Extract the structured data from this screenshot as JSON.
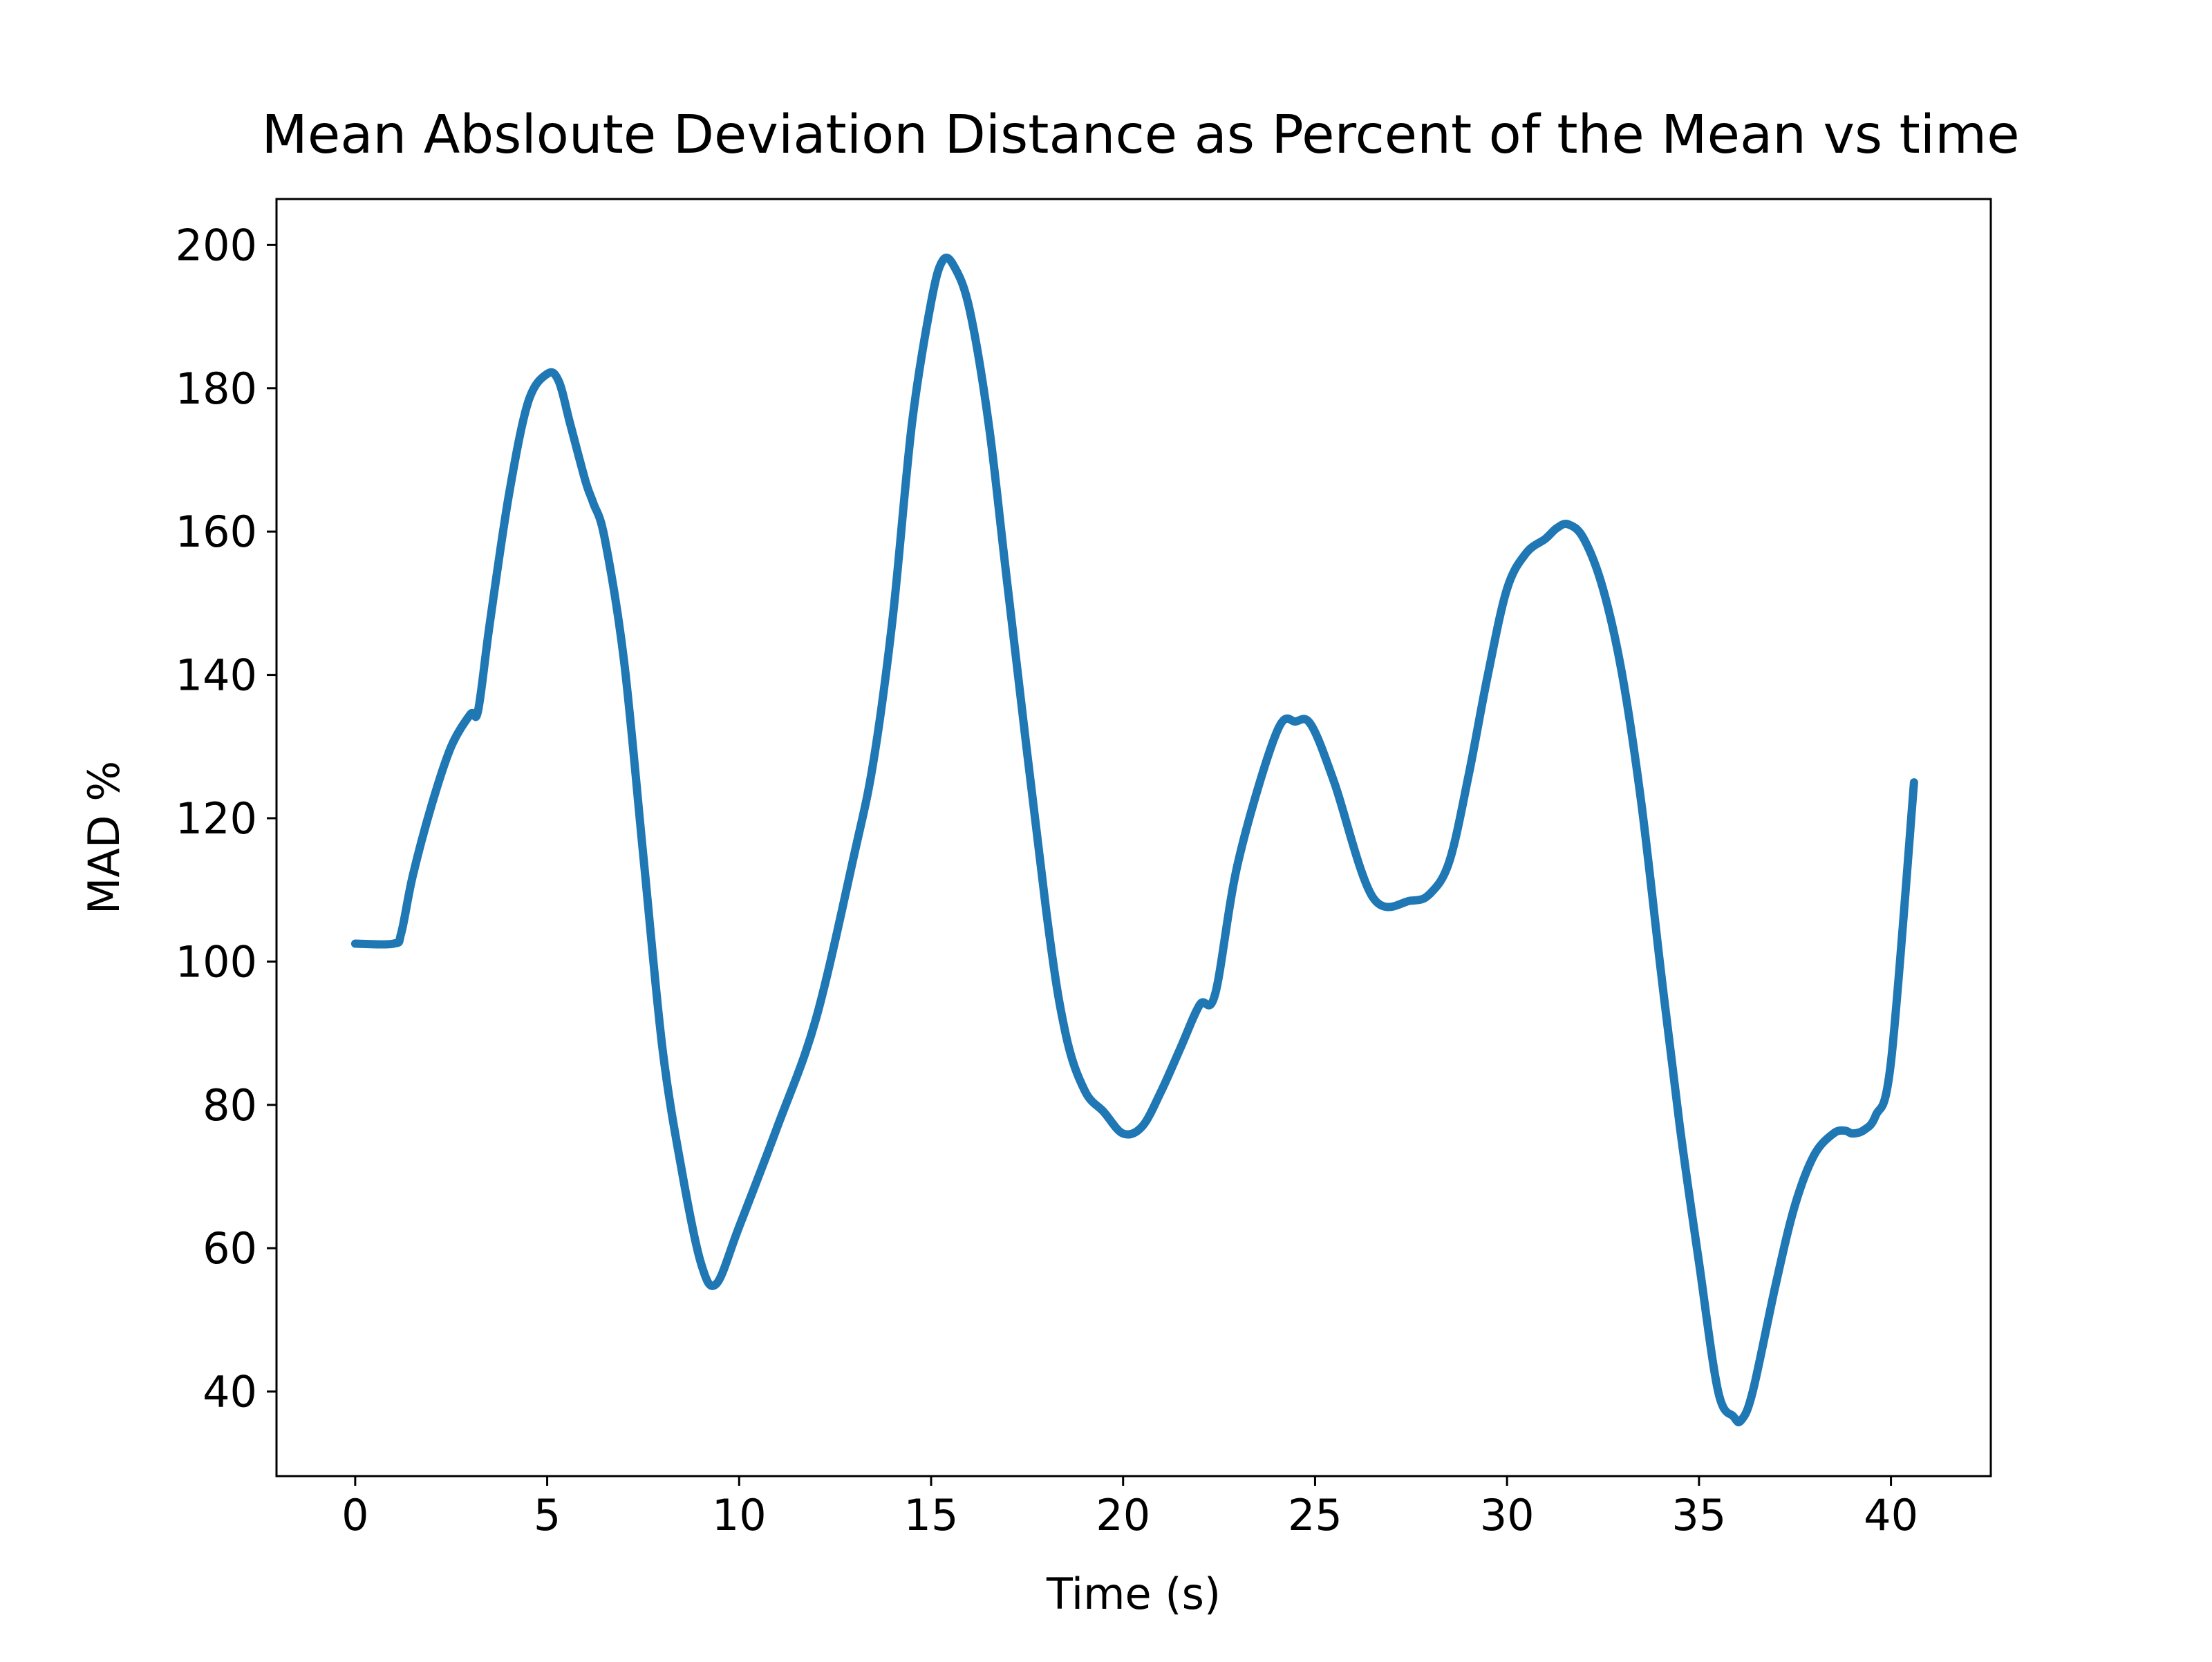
{
  "chart_data": {
    "type": "line",
    "title": "Mean Absloute Deviation Distance as Percent of the Mean vs time",
    "xlabel": "Time (s)",
    "ylabel": "MAD %",
    "xlim": [
      -2.05,
      42.6
    ],
    "ylim": [
      28.2,
      206.4
    ],
    "xticks": [
      0,
      5,
      10,
      15,
      20,
      25,
      30,
      35,
      40
    ],
    "yticks": [
      40,
      60,
      80,
      100,
      120,
      140,
      160,
      180,
      200
    ],
    "grid": false,
    "legend": "none",
    "series": [
      {
        "color": "#1f77b4",
        "x": [
          0,
          1.0,
          1.2,
          1.5,
          2.0,
          2.5,
          3.0,
          3.2,
          3.5,
          4.0,
          4.5,
          5.0,
          5.3,
          5.6,
          6.0,
          6.2,
          6.5,
          7.0,
          7.5,
          8.0,
          8.5,
          9.0,
          9.4,
          10.0,
          11.0,
          12.0,
          13.0,
          13.5,
          14.0,
          14.5,
          15.0,
          15.3,
          15.6,
          16.0,
          16.5,
          17.0,
          18.0,
          18.5,
          19.0,
          19.5,
          20.0,
          20.5,
          21.0,
          21.5,
          22.0,
          22.4,
          23.0,
          24.0,
          24.5,
          24.9,
          25.5,
          26.5,
          27.5,
          28.0,
          28.5,
          29.0,
          29.5,
          30.0,
          30.5,
          31.0,
          31.3,
          31.6,
          32.0,
          32.5,
          33.0,
          33.5,
          34.0,
          34.5,
          35.0,
          35.5,
          35.9,
          36.1,
          36.4,
          37.0,
          37.5,
          38.0,
          38.5,
          38.8,
          39.0,
          39.3,
          39.6,
          40.0,
          40.6
        ],
        "y": [
          102.5,
          102.5,
          104,
          112,
          122,
          130,
          134.5,
          135,
          147,
          165,
          178,
          182,
          181,
          175,
          167,
          164,
          159,
          142,
          115,
          88,
          71,
          58,
          55,
          63,
          77,
          92,
          115,
          128,
          148,
          175,
          192,
          197.8,
          197,
          191,
          175,
          152,
          107,
          90,
          82,
          79,
          76,
          77,
          82,
          88,
          94,
          95.5,
          114,
          132,
          133.5,
          133,
          125,
          109,
          108.5,
          109.5,
          114,
          126,
          140,
          152,
          157,
          159,
          160.5,
          161,
          159,
          152,
          140,
          122,
          99,
          77,
          58,
          40,
          36.5,
          36,
          40,
          55,
          66,
          73,
          76,
          76.4,
          76,
          76.5,
          78.5,
          86,
          125
        ]
      }
    ]
  }
}
